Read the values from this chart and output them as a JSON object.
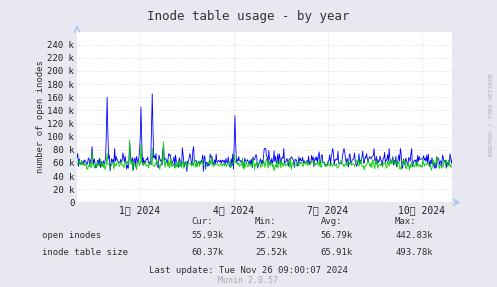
{
  "title": "Inode table usage - by year",
  "ylabel": "number of open inodes",
  "xlabel_ticks": [
    "1月 2024",
    "4月 2024",
    "7月 2024",
    "10月 2024"
  ],
  "ylim": [
    0,
    260000
  ],
  "yticks": [
    0,
    20000,
    40000,
    60000,
    80000,
    100000,
    120000,
    140000,
    160000,
    180000,
    200000,
    220000,
    240000
  ],
  "ytick_labels": [
    "0",
    "20 k",
    "40 k",
    "60 k",
    "80 k",
    "100 k",
    "120 k",
    "140 k",
    "160 k",
    "180 k",
    "200 k",
    "220 k",
    "240 k"
  ],
  "bg_color": "#e8e8f0",
  "plot_bg_color": "#ffffff",
  "grid_color": "#ccccdd",
  "green_color": "#00cc00",
  "blue_color": "#0000ff",
  "legend": [
    "open inodes",
    "inode table size"
  ],
  "stats_row1": [
    "Cur:",
    "Min:",
    "Avg:",
    "Max:"
  ],
  "stats_open": [
    "55.93k",
    "25.29k",
    "56.79k",
    "442.83k"
  ],
  "stats_table": [
    "60.37k",
    "25.52k",
    "65.91k",
    "493.78k"
  ],
  "last_update": "Last update: Tue Nov 26 09:00:07 2024",
  "munin_version": "Munin 2.0.57",
  "watermark": "RRDTOOL / TOBI OETIKER",
  "seed": 42,
  "n_points": 500
}
